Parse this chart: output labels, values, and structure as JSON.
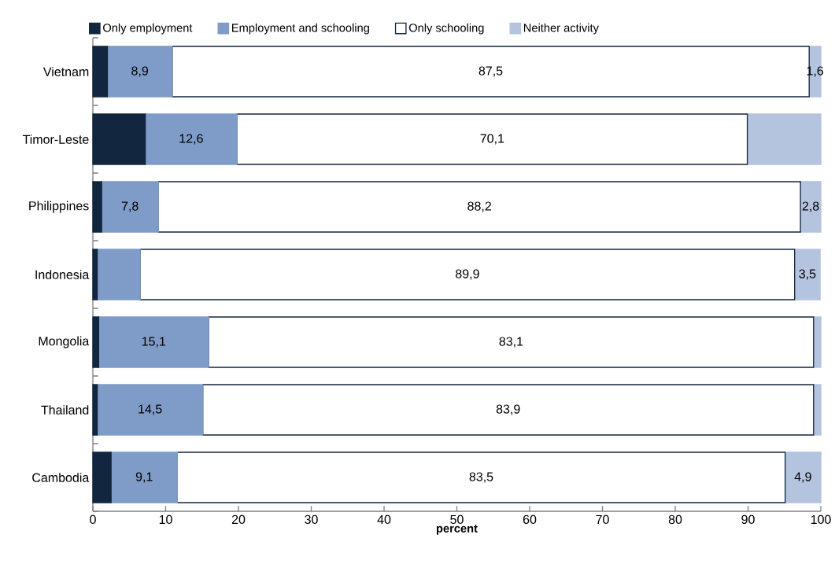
{
  "chart_data": {
    "type": "bar",
    "orientation": "horizontal",
    "stacked": true,
    "xlabel": "percent",
    "categories": [
      "Vietnam",
      "Timor-Leste",
      "Philippines",
      "Indonesia",
      "Mongolia",
      "Thailand",
      "Cambodia"
    ],
    "xlim": [
      0,
      100
    ],
    "xticks": [
      0,
      10,
      20,
      30,
      40,
      50,
      60,
      70,
      80,
      90,
      100
    ],
    "legend": "top",
    "grid": false,
    "series": [
      {
        "name": "Only employment",
        "color": "#13263f",
        "values": [
          2.0,
          7.2,
          1.2,
          0.6,
          0.8,
          0.6,
          2.5
        ]
      },
      {
        "name": "Employment and schooling",
        "color": "#7f9cc8",
        "values": [
          8.9,
          12.6,
          7.8,
          5.9,
          15.1,
          14.5,
          9.1
        ],
        "value_labels": [
          "8,9",
          "12,6",
          "7,8",
          null,
          "15,1",
          "14,5",
          "9,1"
        ]
      },
      {
        "name": "Only schooling",
        "color": "#ffffff",
        "values": [
          87.5,
          70.1,
          88.2,
          89.9,
          83.1,
          83.9,
          83.5
        ],
        "value_labels": [
          "87,5",
          "70,1",
          "88,2",
          "89,9",
          "83,1",
          "83,9",
          "83,5"
        ]
      },
      {
        "name": "Neither activity",
        "color": "#b4c3de",
        "values": [
          1.6,
          10.1,
          2.8,
          3.5,
          1.0,
          1.0,
          4.9
        ],
        "value_labels": [
          "1,6",
          null,
          "2,8",
          "3,5",
          null,
          null,
          "4,9"
        ]
      }
    ]
  }
}
